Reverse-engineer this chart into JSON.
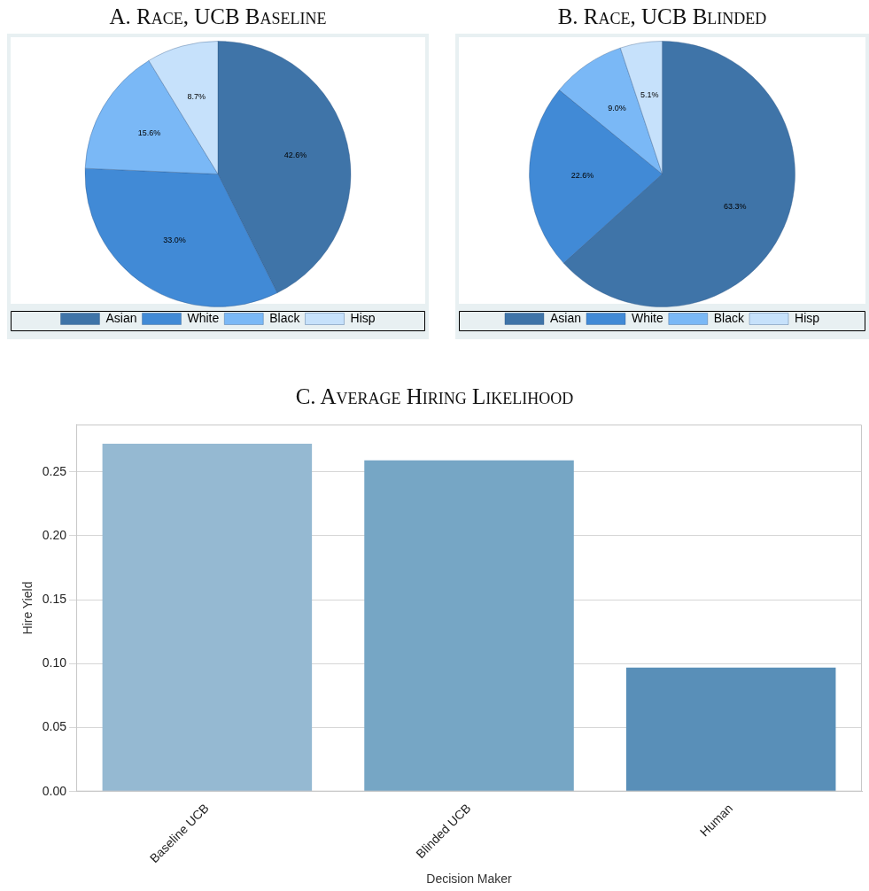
{
  "chart_data": [
    {
      "type": "pie",
      "title": "A. Race, UCB Baseline",
      "categories": [
        "Asian",
        "White",
        "Black",
        "Hisp"
      ],
      "values": [
        42.6,
        33.0,
        15.6,
        8.7
      ],
      "value_labels": [
        "42.6%",
        "33.0%",
        "15.6%",
        "8.7%"
      ],
      "colors": [
        "#3f74a8",
        "#418ad6",
        "#7ab8f6",
        "#c6e1fb"
      ],
      "legend": "bottom"
    },
    {
      "type": "pie",
      "title": "B. Race, UCB Blinded",
      "categories": [
        "Asian",
        "White",
        "Black",
        "Hisp"
      ],
      "values": [
        63.3,
        22.6,
        9.0,
        5.1
      ],
      "value_labels": [
        "63.3%",
        "22.6%",
        "9.0%",
        "5.1%"
      ],
      "colors": [
        "#3f74a8",
        "#418ad6",
        "#7ab8f6",
        "#c6e1fb"
      ],
      "legend": "bottom"
    },
    {
      "type": "bar",
      "title": "C. Average Hiring Likelihood",
      "xlabel": "Decision Maker",
      "ylabel": "Hire Yield",
      "categories": [
        "Baseline UCB",
        "Blinded UCB",
        "Human"
      ],
      "values": [
        0.272,
        0.259,
        0.097
      ],
      "colors": [
        "#95b9d2",
        "#76a6c5",
        "#598fb8"
      ],
      "ylim": [
        0,
        0.287
      ],
      "yticks": [
        {
          "value": 0,
          "label": "0.00"
        },
        {
          "value": 0.05,
          "label": "0.05"
        },
        {
          "value": 0.1,
          "label": "0.10"
        },
        {
          "value": 0.15,
          "label": "0.15"
        },
        {
          "value": 0.2,
          "label": "0.20"
        },
        {
          "value": 0.25,
          "label": "0.25"
        }
      ],
      "grid": "y",
      "legend": false
    }
  ]
}
